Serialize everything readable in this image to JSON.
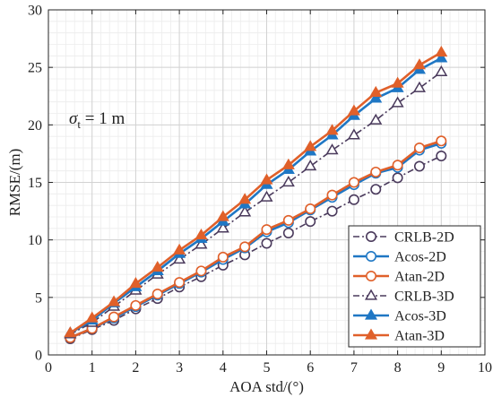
{
  "chart_data": {
    "type": "line",
    "title": "",
    "xlabel": "AOA std/(°)",
    "ylabel": "RMSE/(m)",
    "xlim": [
      0,
      10
    ],
    "ylim": [
      0,
      30
    ],
    "xticks": [
      0,
      1,
      2,
      3,
      4,
      5,
      6,
      7,
      8,
      9,
      10
    ],
    "yticks": [
      0,
      5,
      10,
      15,
      20,
      25,
      30
    ],
    "grid": true,
    "minor_grid": true,
    "legend_position": "bottom-right",
    "annotation": {
      "symbol": "σ",
      "subscript": "t",
      "rest": " = 1 m"
    },
    "x": [
      0.5,
      1,
      1.5,
      2,
      2.5,
      3,
      3.5,
      4,
      4.5,
      5,
      5.5,
      6,
      6.5,
      7,
      7.5,
      8,
      8.5,
      9
    ],
    "series": [
      {
        "name": "CRLB-2D",
        "color": "#4a3a5c",
        "dash": true,
        "marker": "circle",
        "filled": false,
        "values": [
          1.4,
          2.2,
          3.0,
          4.0,
          4.9,
          5.9,
          6.8,
          7.8,
          8.7,
          9.7,
          10.6,
          11.6,
          12.5,
          13.5,
          14.4,
          15.4,
          16.4,
          17.3
        ]
      },
      {
        "name": "Acos-2D",
        "color": "#1f77c4",
        "dash": false,
        "marker": "circle",
        "filled": false,
        "values": [
          1.5,
          2.3,
          3.2,
          4.2,
          5.2,
          6.2,
          7.2,
          8.3,
          9.3,
          10.7,
          11.5,
          12.6,
          13.7,
          14.8,
          15.8,
          16.3,
          17.8,
          18.4
        ]
      },
      {
        "name": "Atan-2D",
        "color": "#e0602a",
        "dash": false,
        "marker": "circle",
        "filled": false,
        "values": [
          1.5,
          2.3,
          3.3,
          4.3,
          5.3,
          6.3,
          7.3,
          8.5,
          9.4,
          10.9,
          11.7,
          12.7,
          13.9,
          15.0,
          15.9,
          16.5,
          18.0,
          18.6
        ]
      },
      {
        "name": "CRLB-3D",
        "color": "#4a3a5c",
        "dash": true,
        "marker": "triangle",
        "filled": false,
        "values": [
          1.8,
          2.8,
          4.2,
          5.6,
          7.0,
          8.3,
          9.6,
          11.0,
          12.4,
          13.7,
          15.0,
          16.4,
          17.8,
          19.1,
          20.4,
          21.9,
          23.2,
          24.6
        ]
      },
      {
        "name": "Acos-3D",
        "color": "#1f77c4",
        "dash": false,
        "marker": "triangle",
        "filled": true,
        "values": [
          1.9,
          3.0,
          4.5,
          5.9,
          7.3,
          8.8,
          10.1,
          11.6,
          13.1,
          14.8,
          16.1,
          17.7,
          19.1,
          20.8,
          22.3,
          23.2,
          24.8,
          25.8
        ]
      },
      {
        "name": "Atan-3D",
        "color": "#e0602a",
        "dash": false,
        "marker": "triangle",
        "filled": true,
        "values": [
          1.9,
          3.2,
          4.6,
          6.2,
          7.6,
          9.1,
          10.4,
          12.0,
          13.5,
          15.2,
          16.5,
          18.1,
          19.5,
          21.2,
          22.8,
          23.6,
          25.2,
          26.3
        ]
      }
    ]
  }
}
